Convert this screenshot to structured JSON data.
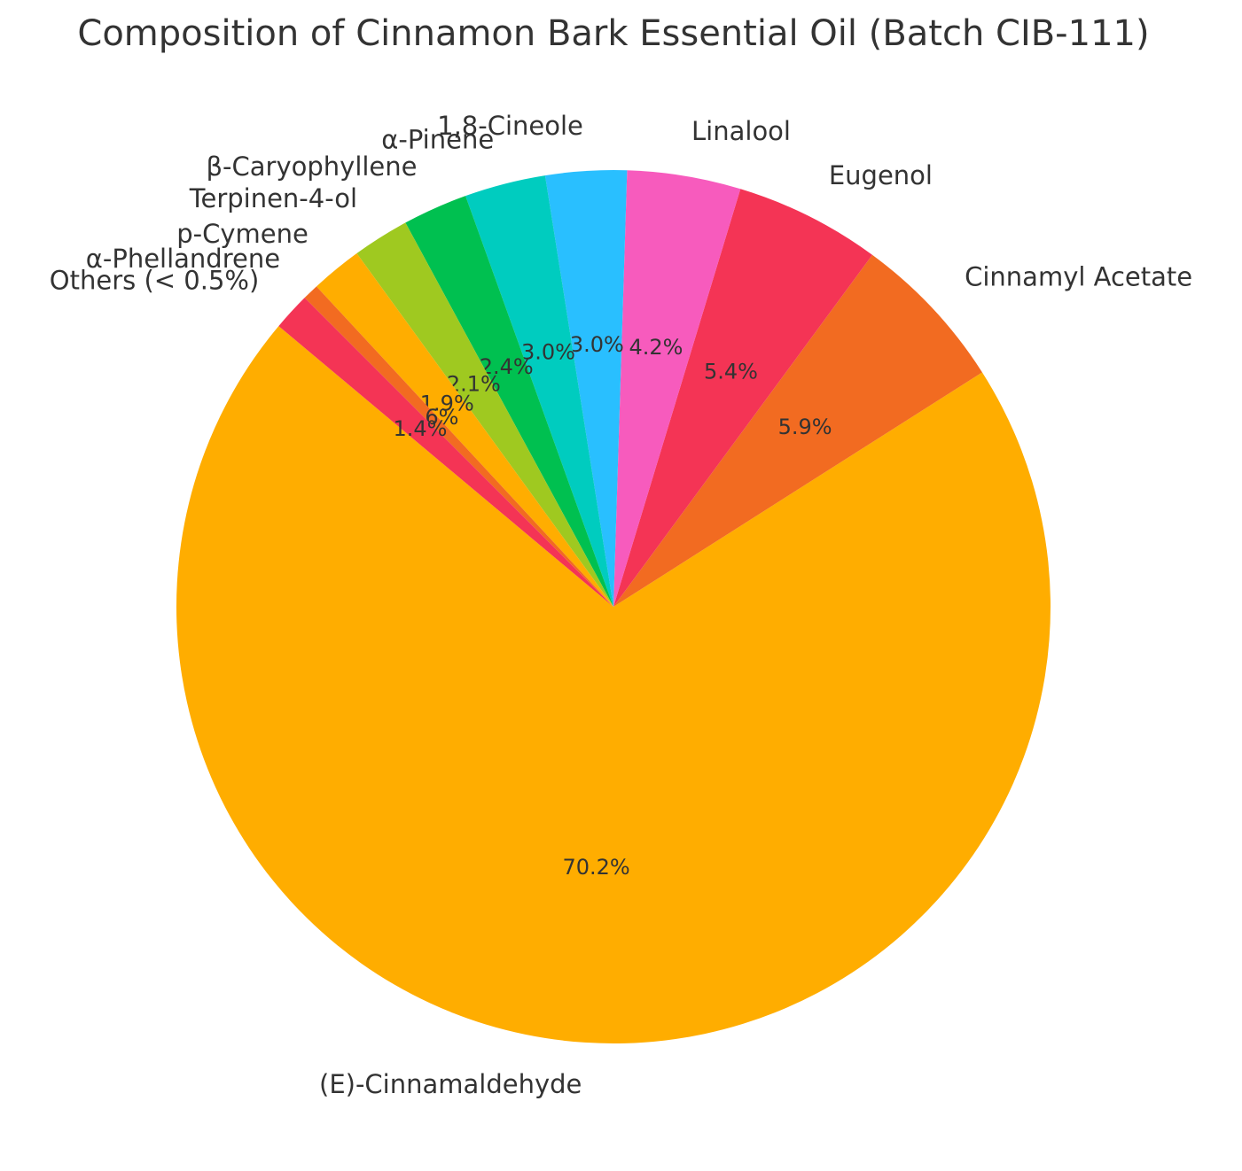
{
  "chart_data": {
    "type": "pie",
    "title": "Composition of Cinnamon Bark Essential Oil (Batch CIB-111)",
    "categories": [
      "(E)-Cinnamaldehyde",
      "Cinnamyl Acetate",
      "Eugenol",
      "Linalool",
      "1,8-Cineole",
      "α-Pinene",
      "β-Caryophyllene",
      "Terpinen-4-ol",
      "p-Cymene",
      "α-Phellandrene",
      "Others (< 0.5%)"
    ],
    "values": [
      70.2,
      5.9,
      5.4,
      4.2,
      3.0,
      3.0,
      2.4,
      2.1,
      1.9,
      0.6,
      1.4
    ],
    "value_labels": [
      "70.2%",
      "5.9%",
      "5.4%",
      "4.2%",
      "3.0%",
      "3.0%",
      "2.4%",
      "2.1%",
      "1.9%",
      "0.6%",
      "1.4%"
    ],
    "colors": [
      "#ffad00",
      "#f26b21",
      "#f43455",
      "#f75bbd",
      "#29bfff",
      "#00ccbf",
      "#00c050",
      "#9fc920",
      "#ffad00",
      "#f26b21",
      "#f43455"
    ],
    "startangle": 140
  }
}
